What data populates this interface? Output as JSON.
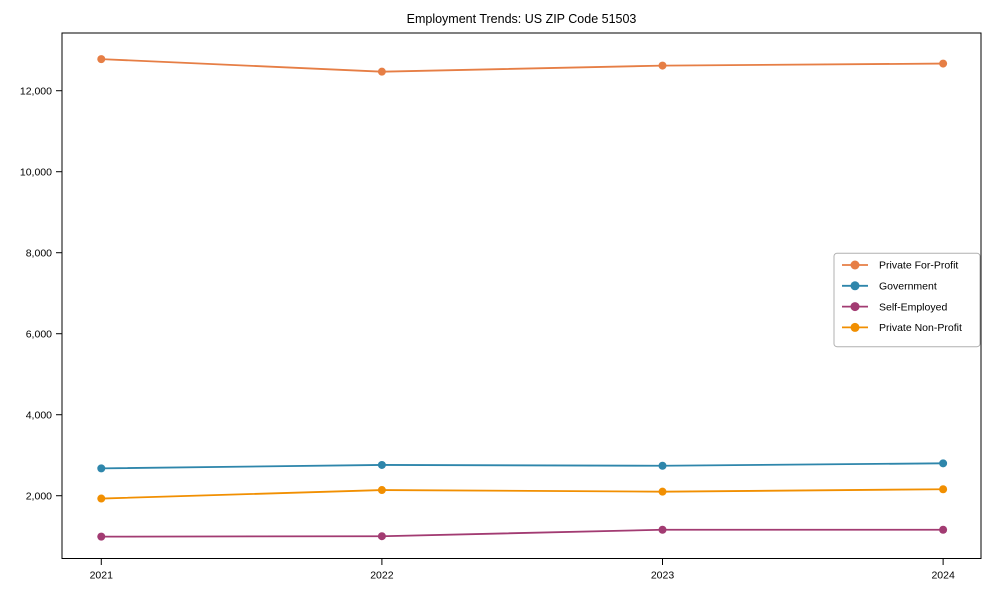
{
  "title": "Employment Trends: US ZIP Code 51503",
  "chart_data": {
    "type": "line",
    "title": "Employment Trends: US ZIP Code 51503",
    "xlabel": "",
    "ylabel": "",
    "x": [
      2021,
      2022,
      2023,
      2024
    ],
    "x_tick_labels": [
      "2021",
      "2022",
      "2023",
      "2024"
    ],
    "y_ticks": [
      2000,
      4000,
      6000,
      8000,
      10000,
      12000
    ],
    "y_tick_labels": [
      "2,000",
      "4,000",
      "6,000",
      "8,000",
      "10,000",
      "12,000"
    ],
    "xlim": [
      2020.86,
      2024.135
    ],
    "ylim": [
      450,
      13425
    ],
    "grid": false,
    "legend_position": "center-right-inside",
    "series": [
      {
        "name": "Private For-Profit",
        "color": "#E67E45",
        "values": [
          12780,
          12470,
          12620,
          12670
        ]
      },
      {
        "name": "Government",
        "color": "#2E86AB",
        "values": [
          2675,
          2760,
          2740,
          2800
        ]
      },
      {
        "name": "Self-Employed",
        "color": "#A23B72",
        "values": [
          990,
          1000,
          1160,
          1160
        ]
      },
      {
        "name": "Private Non-Profit",
        "color": "#F18F01",
        "values": [
          1930,
          2140,
          2100,
          2160
        ]
      }
    ],
    "legend": {
      "entries": [
        "Private For-Profit",
        "Government",
        "Self-Employed",
        "Private Non-Profit"
      ],
      "border_color": "#b0b0b0",
      "background": "#ffffff"
    },
    "frame_color": "#000000"
  }
}
